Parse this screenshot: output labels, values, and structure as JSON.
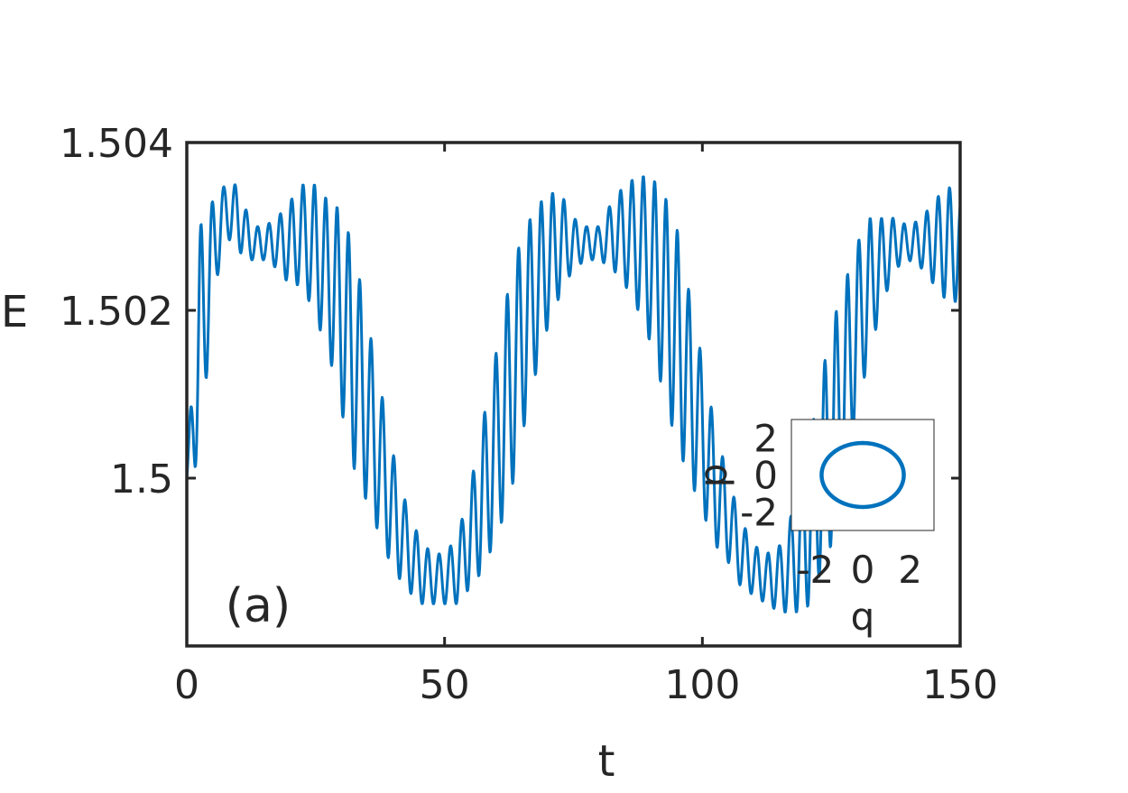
{
  "chart_data": [
    {
      "type": "line",
      "panel_label": "(a)",
      "xlabel": "t",
      "ylabel": "E",
      "xlim": [
        0,
        150
      ],
      "ylim": [
        1.498,
        1.504
      ],
      "xticks": [
        0,
        50,
        100,
        150
      ],
      "xtick_labels": [
        "0",
        "50",
        "100",
        "150"
      ],
      "yticks": [
        1.5,
        1.502,
        1.504
      ],
      "ytick_labels": [
        "1.5",
        "1.502",
        "1.504"
      ],
      "grid": false,
      "line_color": "#0072BD",
      "series": [
        {
          "description_free": true,
          "x": [
            0,
            2.5,
            5,
            7.5,
            10,
            12.5,
            15,
            17.5,
            20,
            22.5,
            25,
            27.5,
            30,
            32.5,
            35,
            37.5,
            40,
            42.5,
            45,
            47.5,
            50,
            52.5,
            55,
            57.5,
            60,
            62.5,
            65,
            67.5,
            70,
            72.5,
            75,
            77.5,
            80,
            82.5,
            85,
            87.5,
            90,
            92.5,
            95,
            97.5,
            100,
            102.5,
            105,
            107.5,
            110,
            112.5,
            115,
            117.5,
            120,
            122.5,
            125,
            127.5,
            130,
            132.5,
            135,
            137.5,
            140,
            142.5,
            145,
            147.5,
            150
          ],
          "y": [
            1.5,
            1.5016,
            1.5027,
            1.5032,
            1.5031,
            1.5028,
            1.5028,
            1.5028,
            1.5028,
            1.5029,
            1.5027,
            1.5024,
            1.502,
            1.5014,
            1.5008,
            1.5002,
            1.4996,
            1.4992,
            1.4989,
            1.4988,
            1.4988,
            1.4989,
            1.4993,
            1.4998,
            1.5004,
            1.501,
            1.5017,
            1.5022,
            1.5026,
            1.5028,
            1.5028,
            1.5028,
            1.5028,
            1.5029,
            1.5029,
            1.5028,
            1.5026,
            1.5022,
            1.5017,
            1.5011,
            1.5005,
            1.4999,
            1.4995,
            1.4991,
            1.4989,
            1.4988,
            1.4988,
            1.499,
            1.4993,
            1.4999,
            1.5005,
            1.5011,
            1.5018,
            1.5023,
            1.5026,
            1.5028,
            1.5028,
            1.5028,
            1.5028,
            1.5028,
            1.5027
          ],
          "envelope_amplitude": [
            0.0,
            0.0014,
            0.0006,
            0.0003,
            0.0004,
            0.0002,
            0.0002,
            0.0003,
            0.0005,
            0.0006,
            0.0008,
            0.0009,
            0.0012,
            0.0013,
            0.0011,
            0.0009,
            0.0007,
            0.0005,
            0.0004,
            0.0003,
            0.0003,
            0.0004,
            0.0006,
            0.0009,
            0.0011,
            0.0013,
            0.0012,
            0.001,
            0.0008,
            0.0006,
            0.0003,
            0.0002,
            0.0002,
            0.0004,
            0.0006,
            0.0008,
            0.001,
            0.0012,
            0.0013,
            0.0011,
            0.0009,
            0.0007,
            0.0005,
            0.0004,
            0.0003,
            0.0003,
            0.0004,
            0.0006,
            0.0009,
            0.0011,
            0.0013,
            0.0012,
            0.001,
            0.0008,
            0.0005,
            0.0003,
            0.0002,
            0.0003,
            0.0005,
            0.0007,
            0.0006
          ],
          "oscillation_period": 2.2
        }
      ]
    },
    {
      "type": "line",
      "role": "inset",
      "xlabel": "q",
      "ylabel": "p",
      "xlim": [
        -3,
        3
      ],
      "ylim": [
        -3,
        3
      ],
      "xticks": [
        -2,
        0,
        2
      ],
      "xtick_labels": [
        "-2",
        "0",
        "2"
      ],
      "yticks": [
        -2,
        0,
        2
      ],
      "ytick_labels": [
        "-2",
        "0",
        "2"
      ],
      "line_color": "#0072BD",
      "series": [
        {
          "shape": "closed-orbit",
          "center": [
            0,
            0
          ],
          "q_amplitude": 1.73,
          "p_amplitude": 1.73
        }
      ]
    }
  ]
}
